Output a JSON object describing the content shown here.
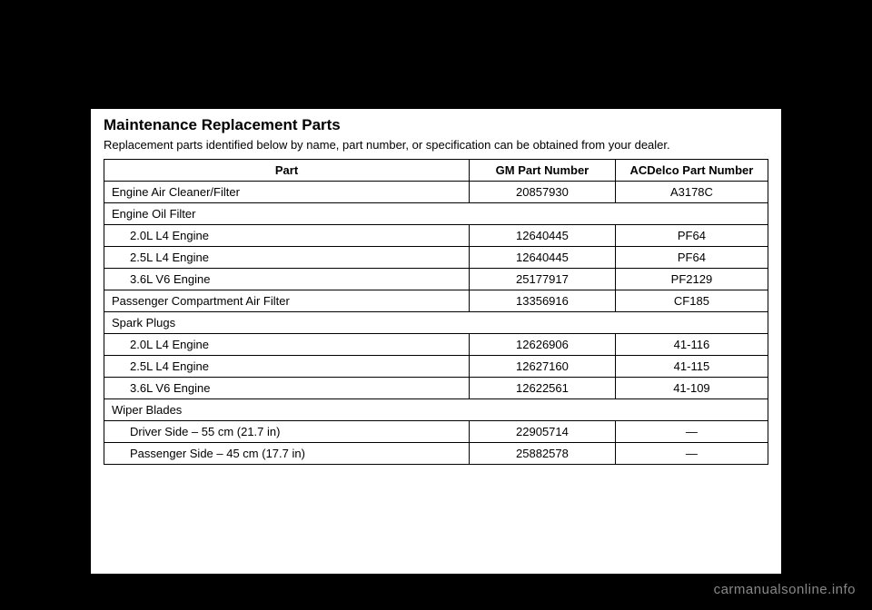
{
  "watermark": "carmanualsonline.info",
  "heading": {
    "title": "Maintenance Replacement Parts",
    "subtitle": "Replacement parts identified below by name, part number, or specification can be obtained from your dealer."
  },
  "table": {
    "columns": {
      "part": "Part",
      "gm": "GM Part Number",
      "ac": "ACDelco Part Number"
    },
    "rows": {
      "engine_air_cleaner": {
        "part": "Engine Air Cleaner/Filter",
        "gm": "20857930",
        "ac": "A3178C"
      },
      "engine_oil_filter_header": {
        "part": "Engine Oil Filter"
      },
      "oil_20l": {
        "part": "2.0L L4 Engine",
        "gm": "12640445",
        "ac": "PF64"
      },
      "oil_25l": {
        "part": "2.5L L4 Engine",
        "gm": "12640445",
        "ac": "PF64"
      },
      "oil_36l": {
        "part": "3.6L V6 Engine",
        "gm": "25177917",
        "ac": "PF2129"
      },
      "passenger_air_filter": {
        "part": "Passenger Compartment Air Filter",
        "gm": "13356916",
        "ac": "CF185"
      },
      "spark_plugs_header": {
        "part": "Spark Plugs"
      },
      "spark_20l": {
        "part": "2.0L L4 Engine",
        "gm": "12626906",
        "ac": "41-116"
      },
      "spark_25l": {
        "part": "2.5L L4 Engine",
        "gm": "12627160",
        "ac": "41-115"
      },
      "spark_36l": {
        "part": "3.6L V6 Engine",
        "gm": "12622561",
        "ac": "41-109"
      },
      "wiper_header": {
        "part": "Wiper Blades"
      },
      "wiper_driver": {
        "part": "Driver Side – 55 cm (21.7 in)",
        "gm": "22905714",
        "ac": "—"
      },
      "wiper_passenger": {
        "part": "Passenger Side – 45 cm (17.7 in)",
        "gm": "25882578",
        "ac": "—"
      }
    }
  },
  "style": {
    "background_color": "#000000",
    "page_color": "#ffffff",
    "text_color": "#000000",
    "border_color": "#000000",
    "watermark_color": "#888888",
    "title_fontsize": 17,
    "body_fontsize": 13
  }
}
